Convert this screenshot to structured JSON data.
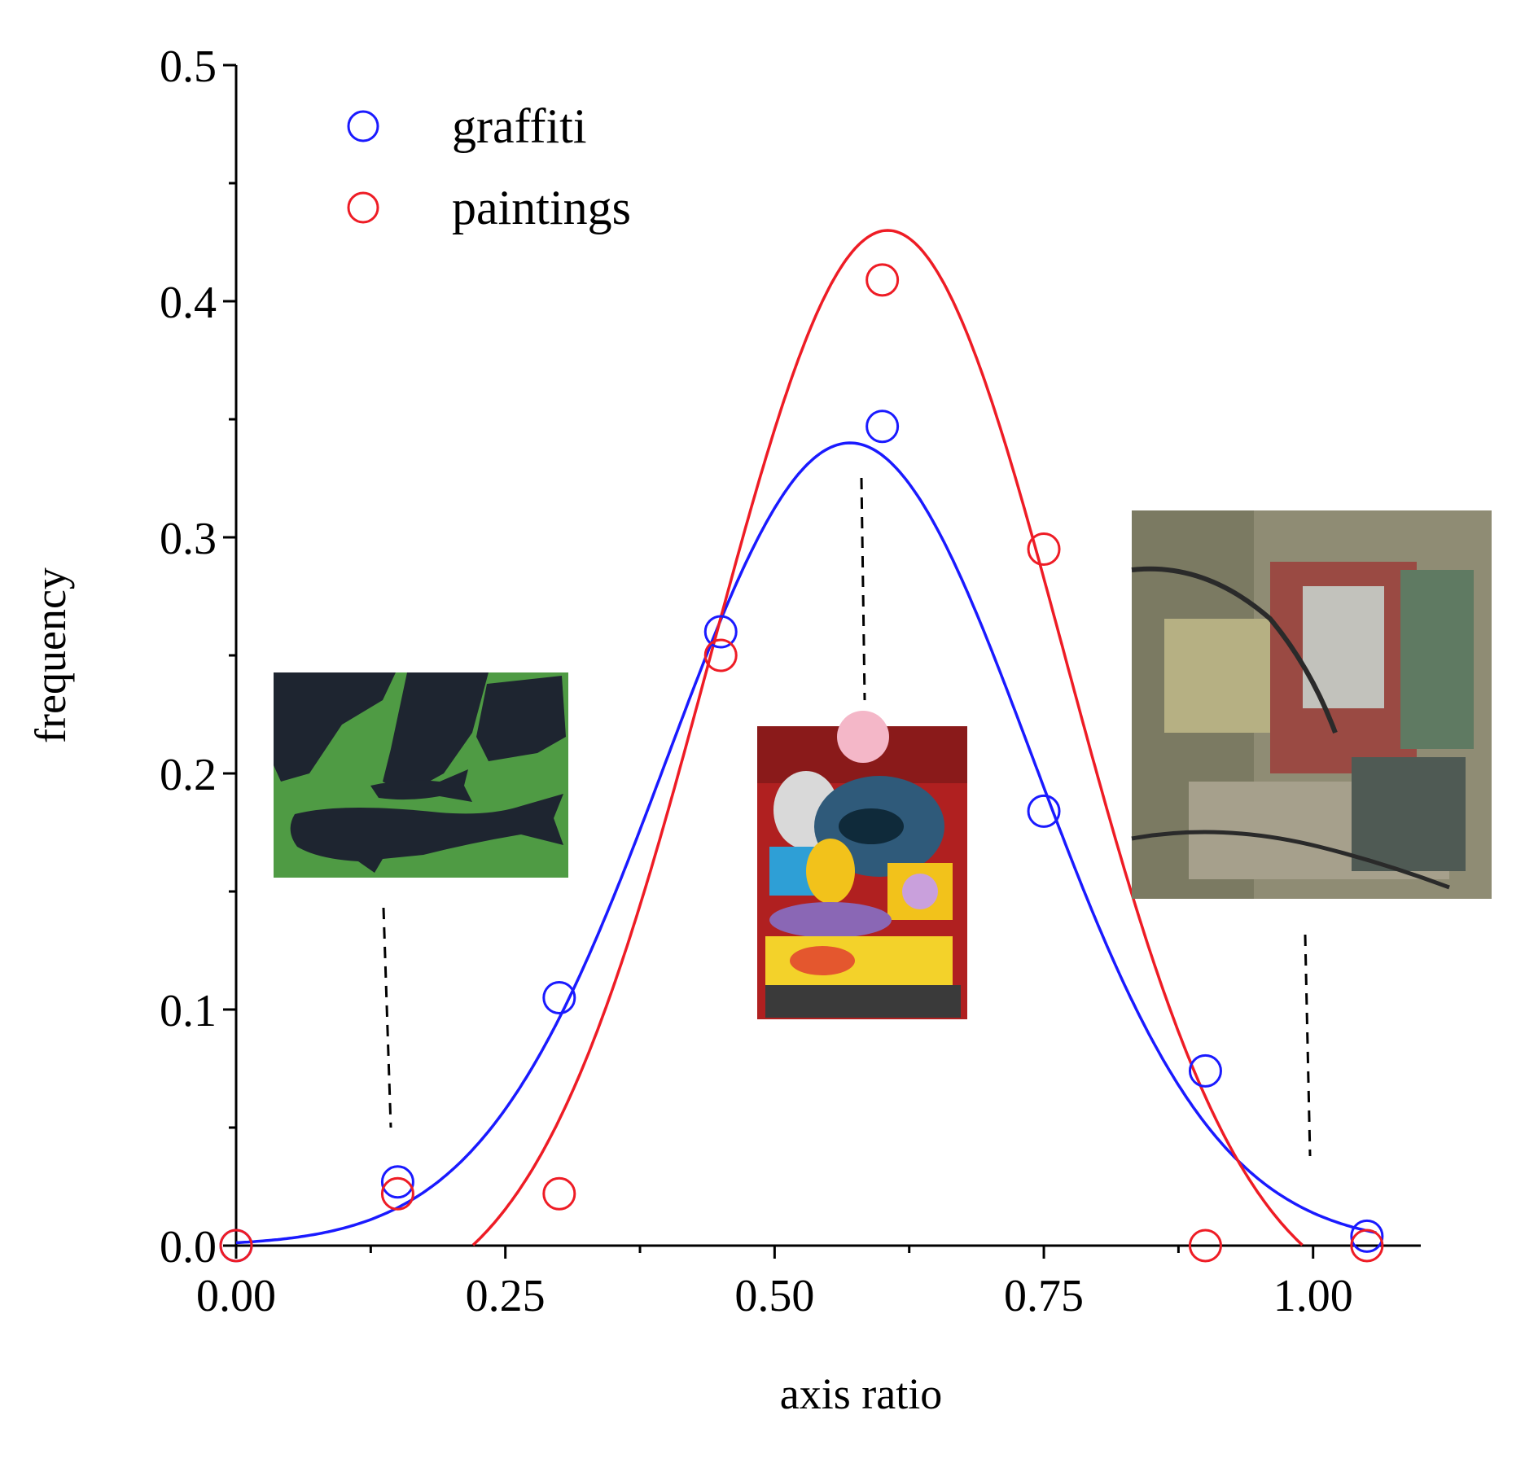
{
  "chart_data": {
    "type": "scatter",
    "title": "",
    "xlabel": "axis ratio",
    "ylabel": "frequency",
    "xlim": [
      0.0,
      1.1
    ],
    "ylim": [
      0.0,
      0.5
    ],
    "x_ticks": [
      0.0,
      0.25,
      0.5,
      0.75,
      1.0
    ],
    "x_tick_labels": [
      "0.00",
      "0.25",
      "0.50",
      "0.75",
      "1.00"
    ],
    "y_ticks": [
      0.0,
      0.1,
      0.2,
      0.3,
      0.4,
      0.5
    ],
    "y_tick_labels": [
      "0.0",
      "0.1",
      "0.2",
      "0.3",
      "0.4",
      "0.5"
    ],
    "grid": false,
    "legend_position": "top-left",
    "series": [
      {
        "name": "graffiti",
        "color": "#1a1aff",
        "marker": "open-circle",
        "points": [
          {
            "x": 0.0,
            "y": 0.0
          },
          {
            "x": 0.15,
            "y": 0.027
          },
          {
            "x": 0.3,
            "y": 0.105
          },
          {
            "x": 0.45,
            "y": 0.26
          },
          {
            "x": 0.6,
            "y": 0.347
          },
          {
            "x": 0.75,
            "y": 0.184
          },
          {
            "x": 0.9,
            "y": 0.074
          },
          {
            "x": 1.05,
            "y": 0.004
          }
        ],
        "fit": {
          "type": "gaussian",
          "y0": 0.0,
          "amplitude": 0.34,
          "center": 0.57,
          "sigma": 0.17
        }
      },
      {
        "name": "paintings",
        "color": "#ee1c25",
        "marker": "open-circle",
        "points": [
          {
            "x": 0.0,
            "y": 0.0
          },
          {
            "x": 0.15,
            "y": 0.022
          },
          {
            "x": 0.3,
            "y": 0.022
          },
          {
            "x": 0.45,
            "y": 0.25
          },
          {
            "x": 0.6,
            "y": 0.409
          },
          {
            "x": 0.75,
            "y": 0.295
          },
          {
            "x": 0.9,
            "y": 0.0
          },
          {
            "x": 1.05,
            "y": 0.0
          }
        ],
        "fit": {
          "type": "gaussian",
          "y0": -0.03,
          "amplitude": 0.46,
          "center": 0.605,
          "sigma": 0.165
        }
      }
    ],
    "annotations": [
      {
        "label": "whale-painting-thumbnail",
        "points_to_x": 0.14
      },
      {
        "label": "graffiti-mural-thumbnail",
        "points_to_x": 0.58
      },
      {
        "label": "abstract-painting-thumbnail",
        "points_to_x": 1.0
      }
    ]
  }
}
